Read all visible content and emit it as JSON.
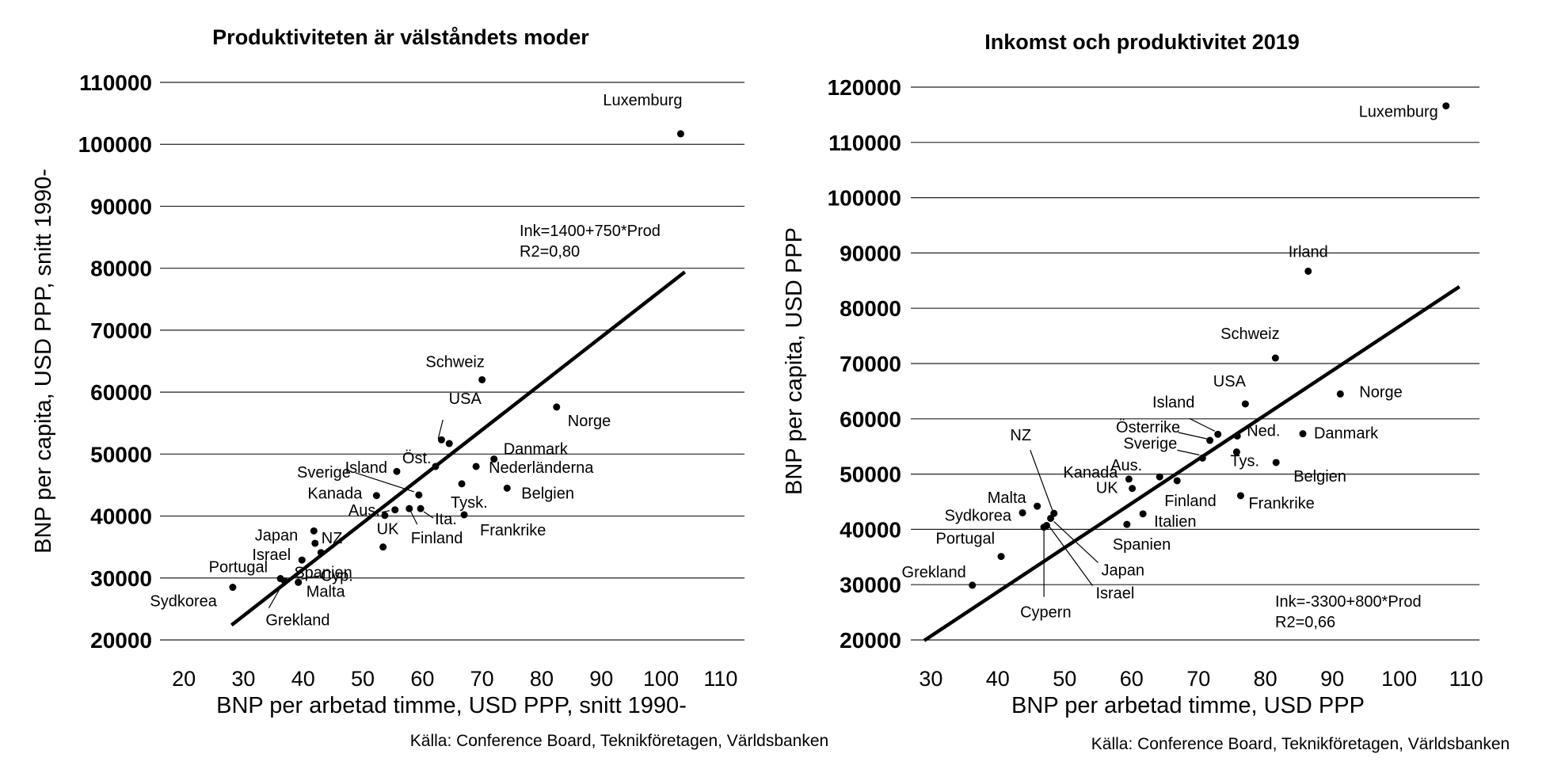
{
  "chart_data": [
    {
      "type": "scatter",
      "title": "Produktiviteten är välståndets moder",
      "xlabel": "BNP per arbetad timme, USD PPP, snitt 1990-",
      "ylabel": "BNP per capita, USD PPP, snitt 1990-",
      "source": "Källa: Conference Board, Teknikföretagen, Världsbanken",
      "xlim": [
        16,
        114
      ],
      "ylim": [
        20000,
        110000
      ],
      "xticks": [
        "20",
        "30",
        "40",
        "50",
        "60",
        "70",
        "80",
        "90",
        "100",
        "110"
      ],
      "yticks": [
        "20000",
        "30000",
        "40000",
        "50000",
        "60000",
        "70000",
        "80000",
        "90000",
        "100000",
        "110000"
      ],
      "grid": "horizontal",
      "annotation": [
        "Ink=1400+750*Prod",
        "R2=0,80"
      ],
      "regression": {
        "intercept": 1400,
        "slope": 750,
        "x_range": [
          28,
          104
        ]
      },
      "points": [
        {
          "label": "Luxemburg",
          "x": 103.3,
          "y": 101700
        },
        {
          "label": "Schweiz",
          "x": 70.0,
          "y": 62000
        },
        {
          "label": "Norge",
          "x": 82.5,
          "y": 57600
        },
        {
          "label": "USA",
          "x": 64.5,
          "y": 51700
        },
        {
          "label": "",
          "x": 63.2,
          "y": 52300
        },
        {
          "label": "Danmark",
          "x": 72.0,
          "y": 49200
        },
        {
          "label": "Öst.",
          "x": 62.2,
          "y": 48000
        },
        {
          "label": "Nederländerna",
          "x": 69.0,
          "y": 48000
        },
        {
          "label": "Island",
          "x": 55.7,
          "y": 47200
        },
        {
          "label": "Tysk.",
          "x": 66.6,
          "y": 45200
        },
        {
          "label": "Belgien",
          "x": 74.2,
          "y": 44500
        },
        {
          "label": "Kanada",
          "x": 52.3,
          "y": 43300
        },
        {
          "label": "Sverige",
          "x": 59.4,
          "y": 43400
        },
        {
          "label": "",
          "x": 55.4,
          "y": 41000
        },
        {
          "label": "Finland",
          "x": 57.8,
          "y": 41200
        },
        {
          "label": "Ita.",
          "x": 59.7,
          "y": 41200
        },
        {
          "label": "Aus.",
          "x": 53.7,
          "y": 40100
        },
        {
          "label": "Frankrike",
          "x": 67.0,
          "y": 40200
        },
        {
          "label": "Japan",
          "x": 41.8,
          "y": 37600
        },
        {
          "label": "NZ",
          "x": 42.0,
          "y": 35600
        },
        {
          "label": "UK",
          "x": 53.4,
          "y": 35000
        },
        {
          "label": "Spanien",
          "x": 43.0,
          "y": 34100
        },
        {
          "label": "Israel",
          "x": 39.8,
          "y": 32900
        },
        {
          "label": "Portugal",
          "x": 36.2,
          "y": 29900
        },
        {
          "label": "Grekland",
          "x": 36.9,
          "y": 29500
        },
        {
          "label": "Malta",
          "x": 39.2,
          "y": 29300
        },
        {
          "label": "Cyp.",
          "x": 39.2,
          "y": 29300
        },
        {
          "label": "Sydkorea",
          "x": 28.2,
          "y": 28500
        }
      ]
    },
    {
      "type": "scatter",
      "title": "Inkomst och produktivitet 2019",
      "xlabel": "BNP per arbetad timme, USD PPP",
      "ylabel": "BNP per capita, USD PPP",
      "source": "Källa: Conference Board, Teknikföretagen, Världsbanken",
      "xlim": [
        27,
        112
      ],
      "ylim": [
        20000,
        120000
      ],
      "xticks": [
        "30",
        "40",
        "50",
        "60",
        "70",
        "80",
        "90",
        "100",
        "110"
      ],
      "yticks": [
        "20000",
        "30000",
        "40000",
        "50000",
        "60000",
        "70000",
        "80000",
        "90000",
        "100000",
        "110000",
        "120000"
      ],
      "grid": "horizontal",
      "annotation": [
        "Ink=-3300+800*Prod",
        "R2=0,66"
      ],
      "regression": {
        "intercept": -3300,
        "slope": 800,
        "x_range": [
          29,
          109
        ]
      },
      "points": [
        {
          "label": "Luxemburg",
          "x": 107.0,
          "y": 116600
        },
        {
          "label": "Irland",
          "x": 86.4,
          "y": 86700
        },
        {
          "label": "Schweiz",
          "x": 81.5,
          "y": 71000
        },
        {
          "label": "Norge",
          "x": 91.2,
          "y": 64500
        },
        {
          "label": "USA",
          "x": 77.0,
          "y": 62700
        },
        {
          "label": "Danmark",
          "x": 85.6,
          "y": 57300
        },
        {
          "label": "Ned.",
          "x": 75.8,
          "y": 56900
        },
        {
          "label": "Island",
          "x": 72.9,
          "y": 57200
        },
        {
          "label": "Österrike",
          "x": 71.7,
          "y": 56100
        },
        {
          "label": "Tys.",
          "x": 75.7,
          "y": 54000
        },
        {
          "label": "Sverige",
          "x": 70.6,
          "y": 52900
        },
        {
          "label": "Belgien",
          "x": 81.6,
          "y": 52100
        },
        {
          "label": "Kanada",
          "x": 59.6,
          "y": 49100
        },
        {
          "label": "Aus.",
          "x": 64.2,
          "y": 49500
        },
        {
          "label": "Finland",
          "x": 66.8,
          "y": 48800
        },
        {
          "label": "UK",
          "x": 60.1,
          "y": 47400
        },
        {
          "label": "Frankrike",
          "x": 76.3,
          "y": 46100
        },
        {
          "label": "NZ",
          "x": 48.4,
          "y": 42900
        },
        {
          "label": "Malta",
          "x": 45.9,
          "y": 44200
        },
        {
          "label": "Sydkorea",
          "x": 43.7,
          "y": 43000
        },
        {
          "label": "Italien",
          "x": 61.7,
          "y": 42800
        },
        {
          "label": "Japan",
          "x": 47.9,
          "y": 42000
        },
        {
          "label": "Israel",
          "x": 47.3,
          "y": 40700
        },
        {
          "label": "Cypern",
          "x": 46.9,
          "y": 40400
        },
        {
          "label": "Spanien",
          "x": 59.3,
          "y": 40900
        },
        {
          "label": "Portugal",
          "x": 40.5,
          "y": 35100
        },
        {
          "label": "Grekland",
          "x": 36.2,
          "y": 29900
        }
      ]
    }
  ]
}
